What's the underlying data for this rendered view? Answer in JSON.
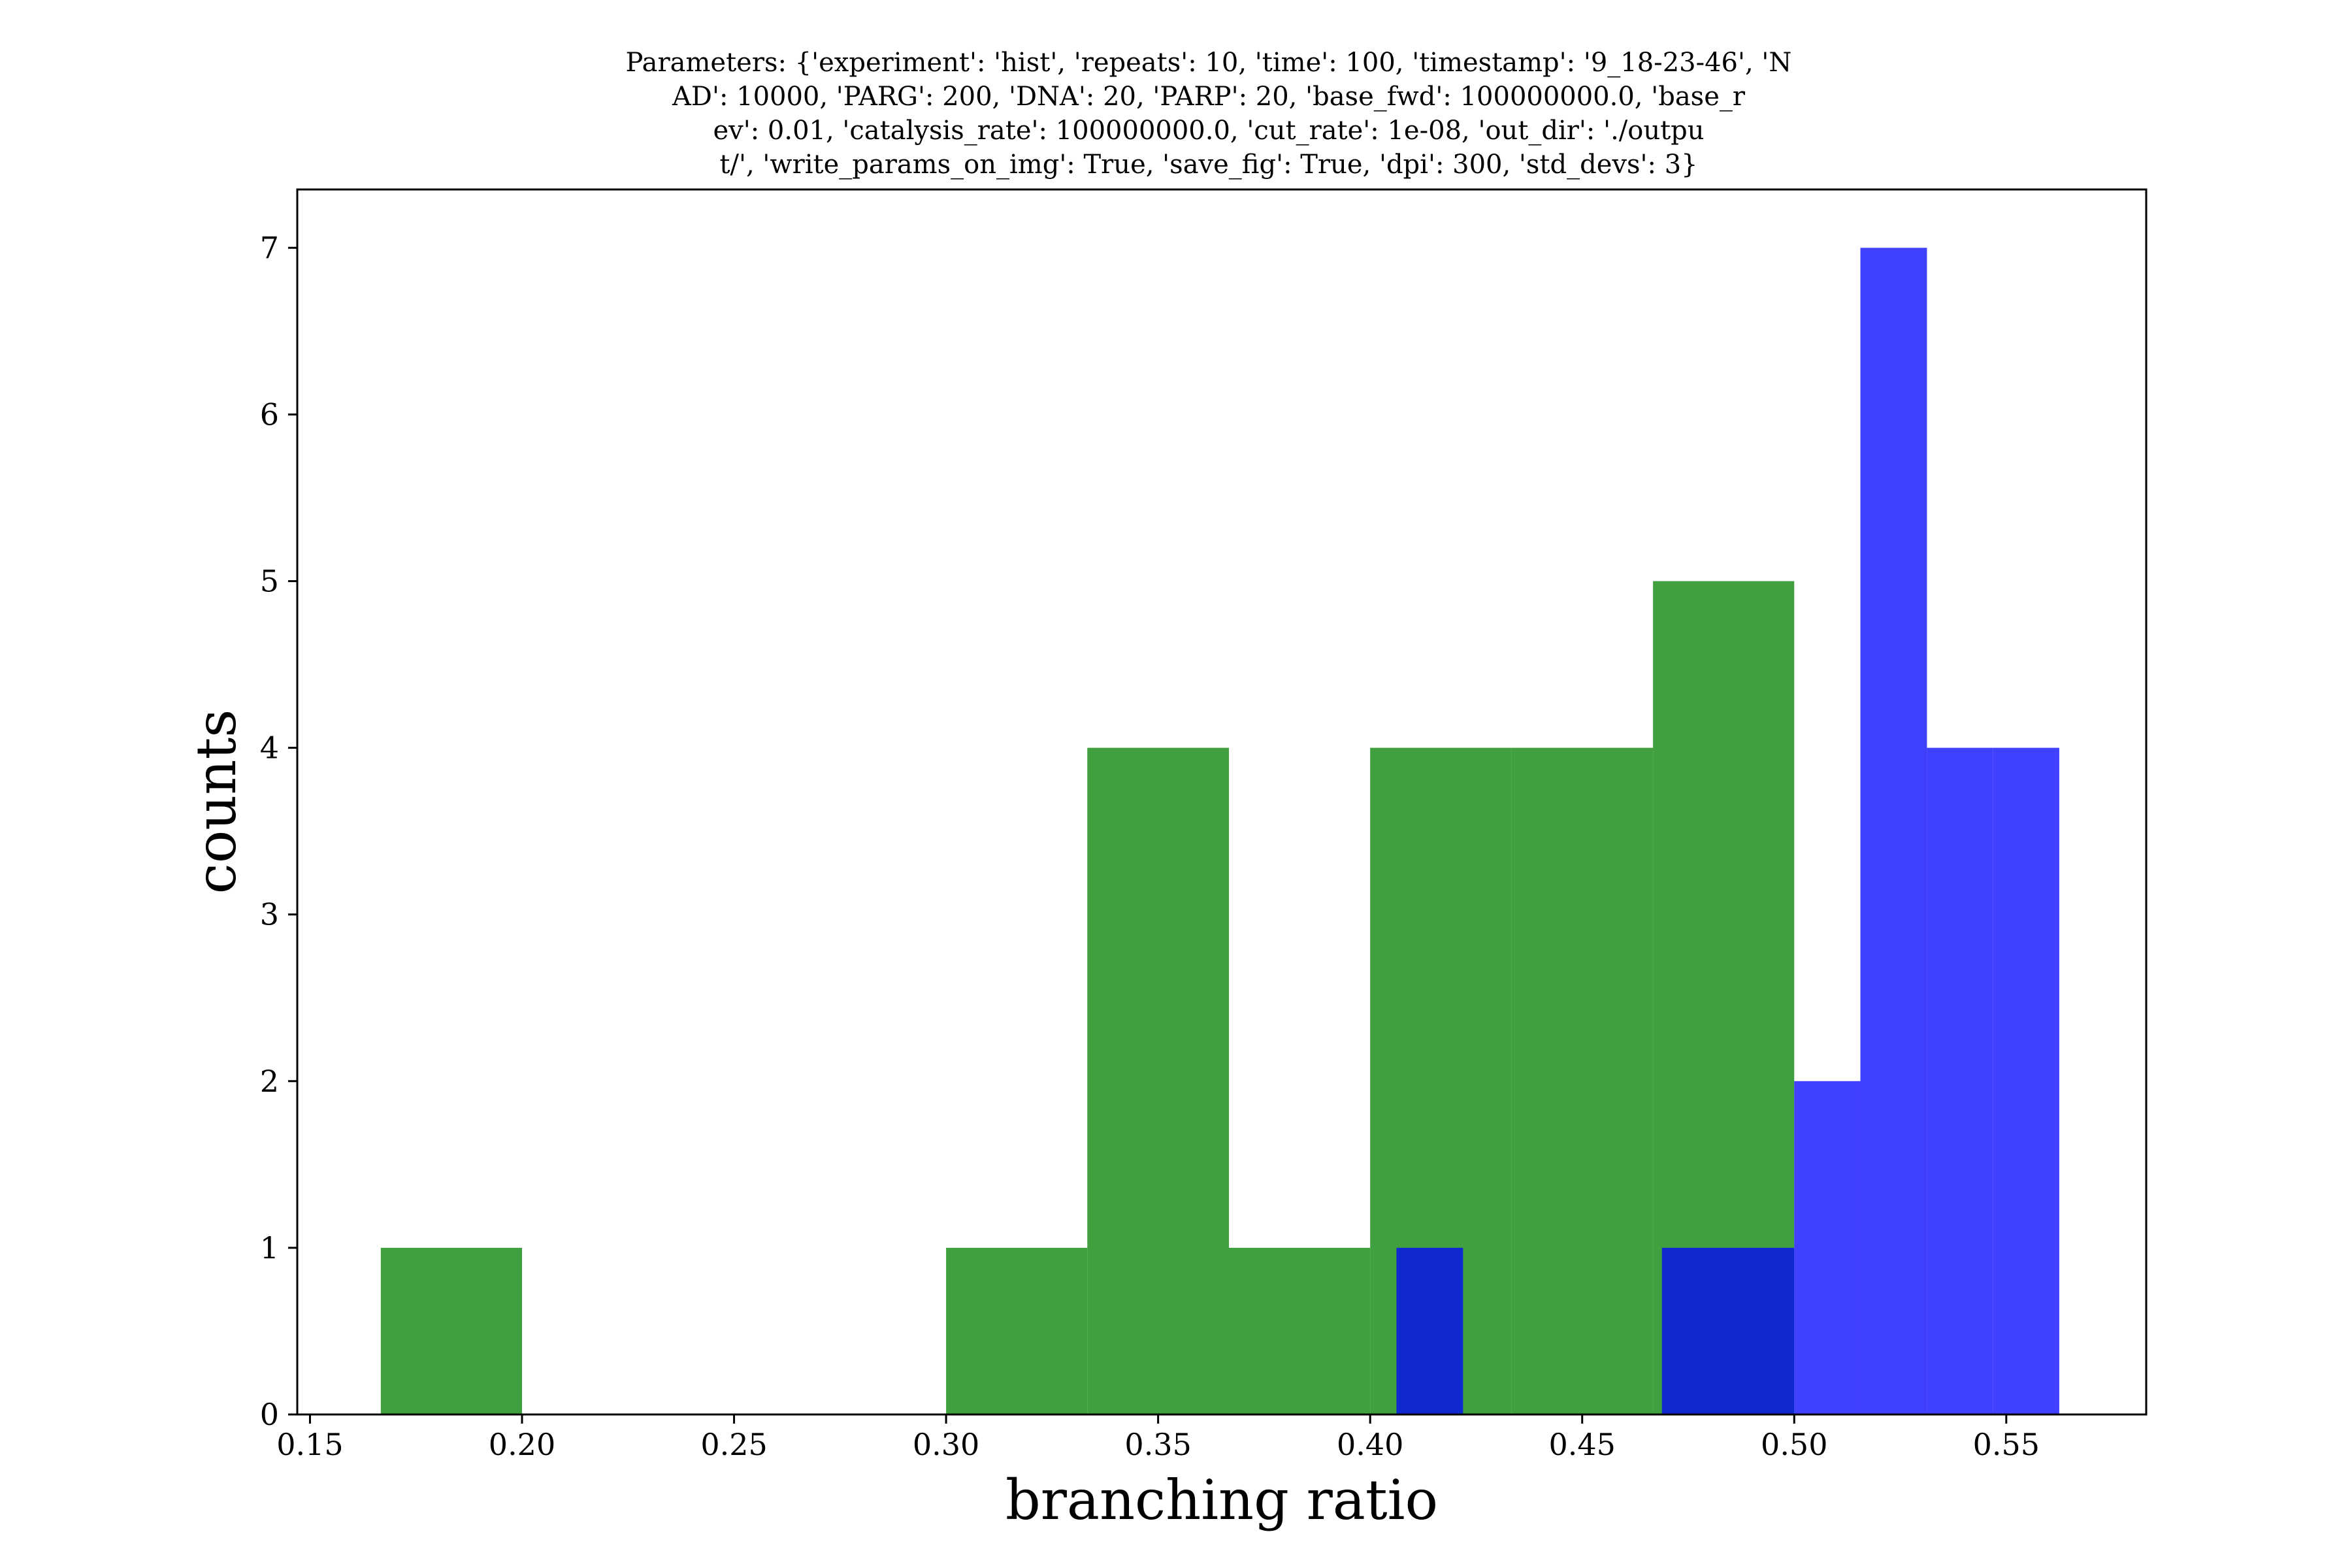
{
  "title_lines": [
    "Parameters: {'experiment': 'hist', 'repeats': 10, 'time': 100, 'timestamp': '9_18-23-46', 'N",
    "AD': 10000, 'PARG': 200, 'DNA': 20, 'PARP': 20, 'base_fwd': 100000000.0, 'base_r",
    "ev': 0.01, 'catalysis_rate': 100000000.0, 'cut_rate': 1e-08, 'out_dir': './outpu",
    "t/', 'write_params_on_img': True, 'save_fig': True, 'dpi': 300, 'std_devs': 3}"
  ],
  "chart_data": {
    "type": "bar",
    "xlabel": "branching ratio",
    "ylabel": "counts",
    "xlim": [
      0.147,
      0.583
    ],
    "ylim": [
      0,
      7.35
    ],
    "xticks": [
      "0.15",
      "0.20",
      "0.25",
      "0.30",
      "0.35",
      "0.40",
      "0.45",
      "0.50",
      "0.55"
    ],
    "yticks": [
      "0",
      "1",
      "2",
      "3",
      "4",
      "5",
      "6",
      "7"
    ],
    "grid": false,
    "series": [
      {
        "color": "#008000",
        "opacity": 0.75,
        "bins": [
          {
            "x0": 0.1667,
            "x1": 0.2,
            "count": 1
          },
          {
            "x0": 0.2,
            "x1": 0.2333,
            "count": 0
          },
          {
            "x0": 0.2333,
            "x1": 0.2667,
            "count": 0
          },
          {
            "x0": 0.2667,
            "x1": 0.3,
            "count": 0
          },
          {
            "x0": 0.3,
            "x1": 0.3333,
            "count": 1
          },
          {
            "x0": 0.3333,
            "x1": 0.3667,
            "count": 4
          },
          {
            "x0": 0.3667,
            "x1": 0.4,
            "count": 1
          },
          {
            "x0": 0.4,
            "x1": 0.4333,
            "count": 4
          },
          {
            "x0": 0.4333,
            "x1": 0.4667,
            "count": 4
          },
          {
            "x0": 0.4667,
            "x1": 0.5,
            "count": 5
          }
        ]
      },
      {
        "color": "#0000ff",
        "opacity": 0.75,
        "bins": [
          {
            "x0": 0.4062,
            "x1": 0.4219,
            "count": 1
          },
          {
            "x0": 0.4219,
            "x1": 0.4375,
            "count": 0
          },
          {
            "x0": 0.4375,
            "x1": 0.4531,
            "count": 0
          },
          {
            "x0": 0.4531,
            "x1": 0.4688,
            "count": 0
          },
          {
            "x0": 0.4688,
            "x1": 0.4844,
            "count": 1
          },
          {
            "x0": 0.4844,
            "x1": 0.5,
            "count": 1
          },
          {
            "x0": 0.5,
            "x1": 0.5156,
            "count": 2
          },
          {
            "x0": 0.5156,
            "x1": 0.5313,
            "count": 7
          },
          {
            "x0": 0.5313,
            "x1": 0.5469,
            "count": 4
          },
          {
            "x0": 0.5469,
            "x1": 0.5625,
            "count": 4
          }
        ]
      }
    ]
  }
}
